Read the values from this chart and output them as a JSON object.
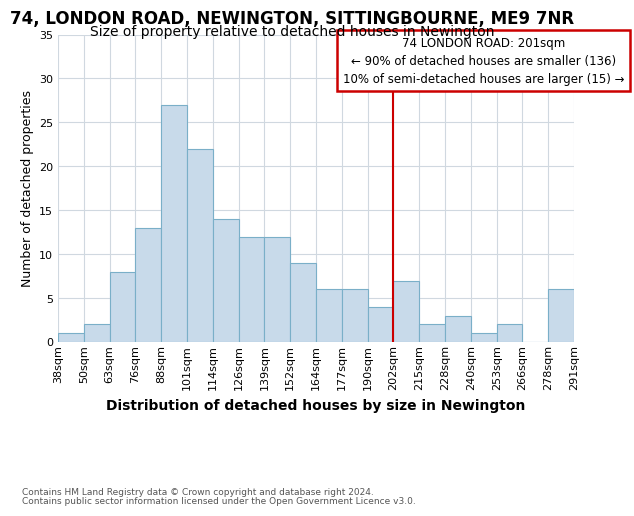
{
  "title": "74, LONDON ROAD, NEWINGTON, SITTINGBOURNE, ME9 7NR",
  "subtitle": "Size of property relative to detached houses in Newington",
  "xlabel": "Distribution of detached houses by size in Newington",
  "ylabel": "Number of detached properties",
  "bar_labels": [
    "38sqm",
    "50sqm",
    "63sqm",
    "76sqm",
    "88sqm",
    "101sqm",
    "114sqm",
    "126sqm",
    "139sqm",
    "152sqm",
    "164sqm",
    "177sqm",
    "190sqm",
    "202sqm",
    "215sqm",
    "228sqm",
    "240sqm",
    "253sqm",
    "266sqm",
    "278sqm",
    "291sqm"
  ],
  "bar_heights": [
    1,
    2,
    8,
    13,
    27,
    22,
    14,
    12,
    12,
    9,
    6,
    6,
    4,
    7,
    2,
    3,
    1,
    2,
    0,
    6
  ],
  "bar_color": "#c8daea",
  "bar_edgecolor": "#7aafc8",
  "ylim": [
    0,
    35
  ],
  "yticks": [
    0,
    5,
    10,
    15,
    20,
    25,
    30,
    35
  ],
  "vline_color": "#cc0000",
  "vline_index": 13,
  "annotation_title": "74 LONDON ROAD: 201sqm",
  "annotation_line1": "← 90% of detached houses are smaller (136)",
  "annotation_line2": "10% of semi-detached houses are larger (15) →",
  "annotation_box_edgecolor": "#cc0000",
  "footnote1": "Contains HM Land Registry data © Crown copyright and database right 2024.",
  "footnote2": "Contains public sector information licensed under the Open Government Licence v3.0.",
  "background_color": "#ffffff",
  "grid_color": "#d0d8e0",
  "title_fontsize": 12,
  "subtitle_fontsize": 10,
  "xlabel_fontsize": 10,
  "ylabel_fontsize": 9,
  "tick_fontsize": 8,
  "annot_fontsize": 8.5
}
